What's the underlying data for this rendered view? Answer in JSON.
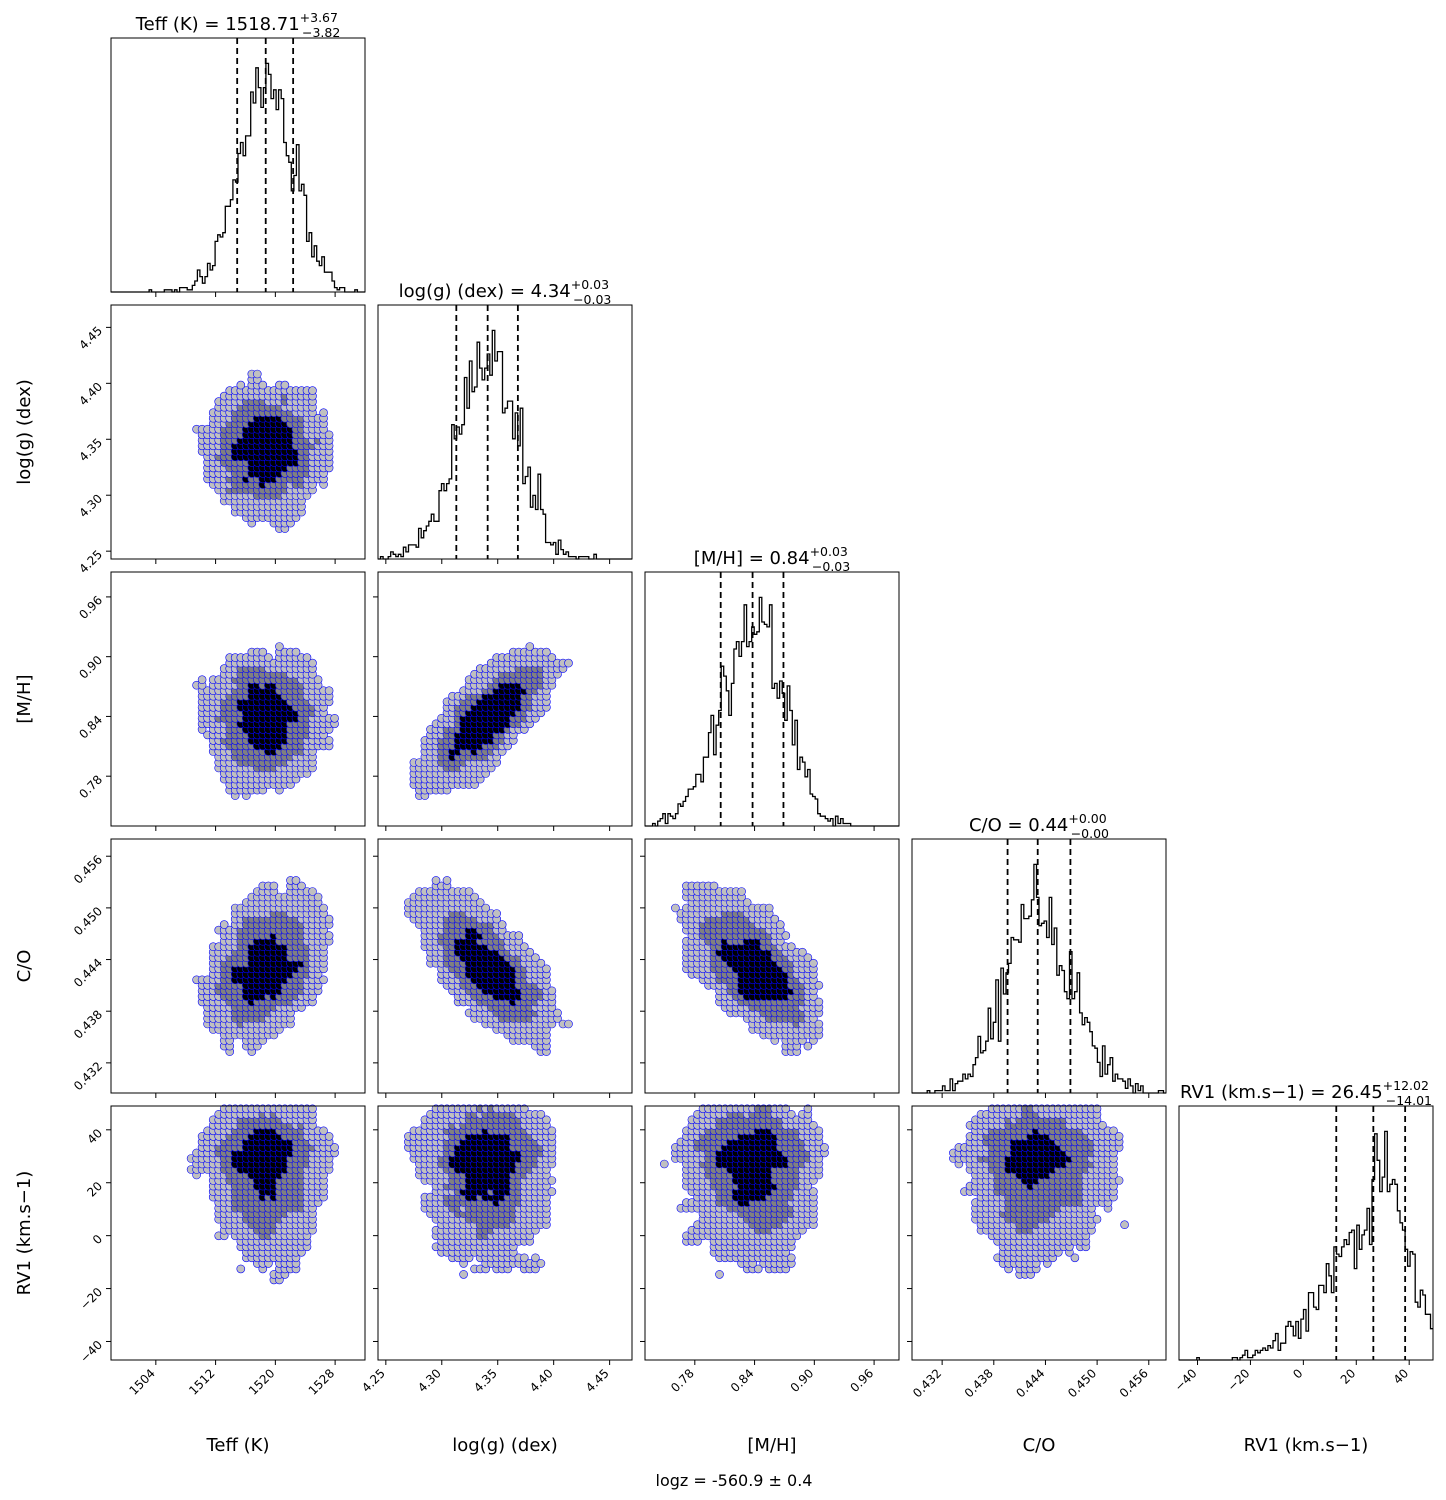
{
  "chart_data": {
    "type": "corner",
    "footer": "logz = -560.9 ± 0.4",
    "parameters": [
      {
        "key": "teff",
        "label": "Teff (K)",
        "title_prefix": "Teff (K) = ",
        "median": "1518.71",
        "plus": "+3.67",
        "minus": "−3.82",
        "range": [
          1498,
          1532
        ],
        "ticks": [
          "1504",
          "1512",
          "1520",
          "1528"
        ],
        "tick_values": [
          1504,
          1512,
          1520,
          1528
        ],
        "quantiles": [
          1514.89,
          1518.71,
          1522.38
        ]
      },
      {
        "key": "logg",
        "label": "log(g) (dex)",
        "title_prefix": "log(g) (dex) = ",
        "median": "4.34",
        "plus": "+0.03",
        "minus": "−0.03",
        "range": [
          4.243,
          4.47
        ],
        "ticks": [
          "4.25",
          "4.30",
          "4.35",
          "4.40",
          "4.45"
        ],
        "tick_values": [
          4.25,
          4.3,
          4.35,
          4.4,
          4.45
        ],
        "quantiles": [
          4.313,
          4.341,
          4.368
        ]
      },
      {
        "key": "mh",
        "label": "[M/H]",
        "title_prefix": "[M/H]  = ",
        "median": "0.84",
        "plus": "+0.03",
        "minus": "−0.03",
        "range": [
          0.73,
          0.985
        ],
        "ticks": [
          "0.78",
          "0.84",
          "0.90",
          "0.96"
        ],
        "tick_values": [
          0.78,
          0.84,
          0.9,
          0.96
        ],
        "quantiles": [
          0.806,
          0.838,
          0.869
        ]
      },
      {
        "key": "co",
        "label": "C/O",
        "title_prefix": "C/O  = ",
        "median": "0.44",
        "plus": "+0.00",
        "minus": "−0.00",
        "range": [
          0.4285,
          0.458
        ],
        "ticks": [
          "0.432",
          "0.438",
          "0.444",
          "0.450",
          "0.456"
        ],
        "tick_values": [
          0.432,
          0.438,
          0.444,
          0.45,
          0.456
        ],
        "quantiles": [
          0.4396,
          0.4431,
          0.4469
        ]
      },
      {
        "key": "rv1",
        "label": "RV1 (km.s−1)",
        "title_prefix": "RV1 (km.s−1) = ",
        "median": "26.45",
        "plus": "+12.02",
        "minus": "−14.01",
        "range": [
          -47,
          49
        ],
        "ticks": [
          "−40",
          "−20",
          "0",
          "20",
          "40"
        ],
        "tick_values": [
          -40,
          -20,
          0,
          20,
          40
        ],
        "quantiles": [
          12.44,
          26.45,
          38.47
        ]
      }
    ],
    "correlations": {
      "logg_mh": 0.75,
      "co_teff": 0.55,
      "co_logg": -0.7,
      "co_mh": -0.65
    },
    "colors": {
      "contour_line": "#0000ff",
      "level_light": "#c0c0c0",
      "level_mid": "#808080",
      "level_dark": "#000000",
      "hist_line": "#000000"
    },
    "histogram_bins": 100,
    "grid": false
  }
}
